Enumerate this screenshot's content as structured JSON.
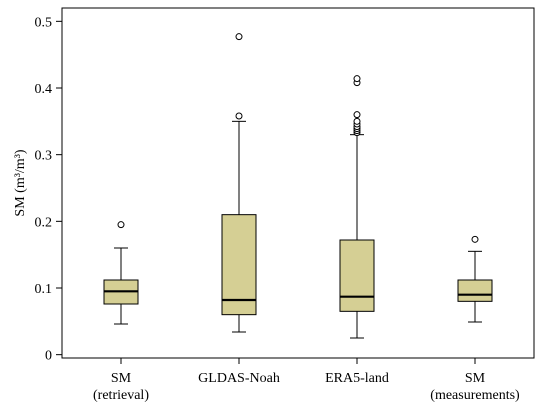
{
  "chart_data": {
    "type": "box",
    "ylabel": "SM (m³/m³)",
    "ylim": [
      -0.005,
      0.52
    ],
    "yticks": [
      "0",
      "0.1",
      "0.2",
      "0.3",
      "0.4",
      "0.5"
    ],
    "ytick_values": [
      0,
      0.1,
      0.2,
      0.3,
      0.4,
      0.5
    ],
    "box_color": "#d5cf94",
    "categories": [
      {
        "line1": "SM",
        "line2": "(retrieval)"
      },
      {
        "line1": "GLDAS-Noah",
        "line2": ""
      },
      {
        "line1": "ERA5-land",
        "line2": ""
      },
      {
        "line1": "SM",
        "line2": "(measurements)"
      }
    ],
    "boxes": [
      {
        "whisker_low": 0.046,
        "q1": 0.076,
        "median": 0.095,
        "q3": 0.112,
        "whisker_high": 0.16,
        "outliers": [
          0.195
        ]
      },
      {
        "whisker_low": 0.034,
        "q1": 0.06,
        "median": 0.082,
        "q3": 0.21,
        "whisker_high": 0.35,
        "outliers": [
          0.358,
          0.477
        ]
      },
      {
        "whisker_low": 0.025,
        "q1": 0.065,
        "median": 0.087,
        "q3": 0.172,
        "whisker_high": 0.33,
        "outliers": [
          0.333,
          0.336,
          0.339,
          0.342,
          0.346,
          0.35,
          0.36,
          0.408,
          0.414
        ]
      },
      {
        "whisker_low": 0.049,
        "q1": 0.08,
        "median": 0.09,
        "q3": 0.112,
        "whisker_high": 0.155,
        "outliers": [
          0.173
        ]
      }
    ]
  }
}
